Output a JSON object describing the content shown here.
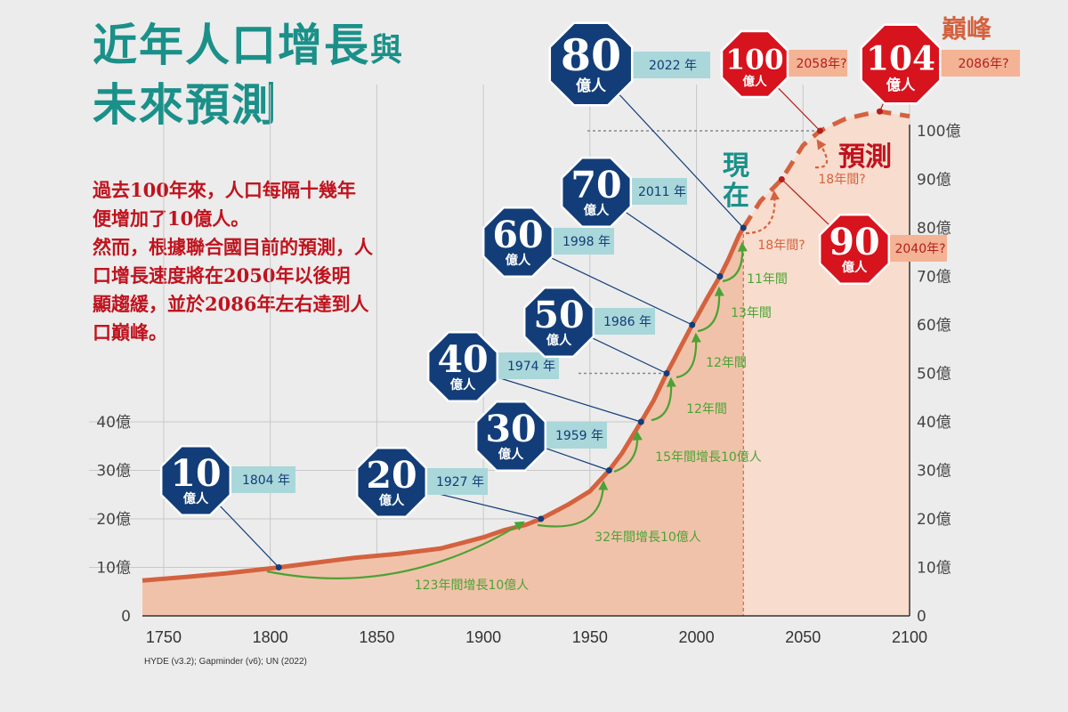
{
  "page": {
    "title_line1": "近年人口增長",
    "title_line1_small": "與",
    "title_line2": "未來預測",
    "description": [
      "過去100年來，人口每隔十幾年",
      "便增加了10億人。",
      "然而，根據聯合國目前的預測，人",
      "口增長速度將在2050年以後明",
      "顯趨緩，並於2086年左右達到人",
      "口巔峰。"
    ],
    "source": "HYDE (v3.2); Gapminder (v6); UN (2022)"
  },
  "chart_data": {
    "type": "area",
    "title": "",
    "xlabel": "",
    "ylabel": "",
    "xlim": [
      1740,
      2100
    ],
    "ylim": [
      0,
      105
    ],
    "x_ticks": [
      "1750",
      "1800",
      "1850",
      "1900",
      "1950",
      "2000",
      "2050",
      "2100"
    ],
    "y_ticks_left": [
      "0",
      "10億",
      "20億",
      "30億",
      "40億"
    ],
    "y_ticks_right": [
      "0",
      "10億",
      "20億",
      "30億",
      "40億",
      "50億",
      "60億",
      "70億",
      "80億",
      "90億",
      "100億"
    ],
    "unit_label": "億人",
    "historical": {
      "x": [
        1740,
        1760,
        1780,
        1800,
        1804,
        1820,
        1840,
        1860,
        1880,
        1900,
        1910,
        1920,
        1927,
        1940,
        1950,
        1959,
        1965,
        1974,
        1980,
        1986,
        1990,
        1998,
        2000,
        2005,
        2011,
        2015,
        2020,
        2022
      ],
      "y": [
        7.3,
        8.0,
        8.8,
        9.8,
        10.0,
        10.9,
        12.0,
        12.8,
        13.9,
        16.2,
        17.7,
        18.8,
        20.0,
        23.0,
        25.7,
        30.0,
        33.5,
        40.0,
        44.5,
        50.0,
        53.3,
        60.0,
        61.5,
        65.5,
        70.0,
        73.5,
        78.5,
        80.0
      ]
    },
    "projection": {
      "x": [
        2022,
        2030,
        2040,
        2050,
        2058,
        2070,
        2080,
        2086,
        2100
      ],
      "y": [
        80.0,
        85.5,
        90.0,
        97.0,
        100.0,
        102.5,
        103.5,
        104.0,
        103.0
      ]
    },
    "now_year": 2022,
    "now_label": "現在",
    "projection_label": "預測",
    "peak_label": "巔峰",
    "milestones": [
      {
        "value": "10",
        "year": 1804,
        "pop": 10,
        "year_label": "1804 年",
        "style": "history"
      },
      {
        "value": "20",
        "year": 1927,
        "pop": 20,
        "year_label": "1927 年",
        "style": "history"
      },
      {
        "value": "30",
        "year": 1959,
        "pop": 30,
        "year_label": "1959 年",
        "style": "history"
      },
      {
        "value": "40",
        "year": 1974,
        "pop": 40,
        "year_label": "1974 年",
        "style": "history"
      },
      {
        "value": "50",
        "year": 1986,
        "pop": 50,
        "year_label": "1986 年",
        "style": "history"
      },
      {
        "value": "60",
        "year": 1998,
        "pop": 60,
        "year_label": "1998 年",
        "style": "history"
      },
      {
        "value": "70",
        "year": 2011,
        "pop": 70,
        "year_label": "2011 年",
        "style": "history"
      },
      {
        "value": "80",
        "year": 2022,
        "pop": 80,
        "year_label": "2022 年",
        "style": "history"
      },
      {
        "value": "90",
        "year": 2040,
        "pop": 90,
        "year_label": "2040年?",
        "style": "projection"
      },
      {
        "value": "100",
        "year": 2058,
        "pop": 100,
        "year_label": "2058年?",
        "style": "projection"
      },
      {
        "value": "104",
        "year": 2086,
        "pop": 104,
        "year_label": "2086年?",
        "style": "projection"
      }
    ],
    "intervals": [
      {
        "label": "123年間增長10億人",
        "from": 1804,
        "to": 1927
      },
      {
        "label": "32年間增長10億人",
        "from": 1927,
        "to": 1959
      },
      {
        "label": "15年間增長10億人",
        "from": 1959,
        "to": 1974
      },
      {
        "label": "12年間",
        "from": 1974,
        "to": 1986
      },
      {
        "label": "12年間",
        "from": 1986,
        "to": 1998
      },
      {
        "label": "13年間",
        "from": 1998,
        "to": 2011
      },
      {
        "label": "11年間",
        "from": 2011,
        "to": 2022
      },
      {
        "label": "18年間?",
        "from": 2022,
        "to": 2040
      },
      {
        "label": "18年間?",
        "from": 2040,
        "to": 2058
      }
    ],
    "colors": {
      "history_line": "#d4623f",
      "history_fill": "#f1c2aa",
      "projection_fill": "#f8dccd",
      "octagon_blue": "#123d78",
      "octagon_red": "#d7131d",
      "year_box_teal": "#a9d7da",
      "year_box_peach": "#f3b394",
      "arrow_green": "#4aa333",
      "arrow_red": "#d4623f",
      "title_teal": "#1a9089",
      "text_red": "#c0131e"
    }
  }
}
